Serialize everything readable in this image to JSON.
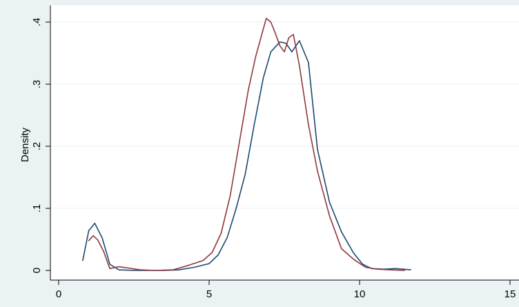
{
  "colors": {
    "outer_background": "#eaf2f3",
    "plot_background": "#ffffff",
    "gridline": "#eaf2f3",
    "axis": "#000000",
    "series_1": "#1a476f",
    "series_2": "#90353b"
  },
  "chart_data": {
    "type": "line",
    "title": "",
    "xlabel": "",
    "ylabel": "Density",
    "xlim": [
      0,
      15
    ],
    "ylim": [
      0,
      0.42
    ],
    "x_ticks": [
      0,
      5,
      10,
      15
    ],
    "x_tick_labels": [
      "0",
      "5",
      "10",
      "15"
    ],
    "y_ticks": [
      0,
      0.1,
      0.2,
      0.3,
      0.4
    ],
    "y_tick_labels": [
      "0",
      ".1",
      ".2",
      ".3",
      ".4"
    ],
    "grid": "horizontal",
    "legend": "none",
    "series": [
      {
        "color": "#1a476f",
        "x": [
          0.8,
          1.0,
          1.2,
          1.45,
          1.7,
          2.0,
          2.5,
          3.0,
          3.5,
          4.0,
          4.5,
          5.0,
          5.3,
          5.6,
          5.9,
          6.2,
          6.5,
          6.8,
          7.05,
          7.35,
          7.55,
          7.75,
          8.0,
          8.3,
          8.6,
          9.0,
          9.4,
          9.8,
          10.1,
          10.4,
          10.8,
          11.2,
          11.7
        ],
        "y": [
          0.016,
          0.064,
          0.076,
          0.052,
          0.01,
          0.001,
          0.0,
          0.0,
          0.0,
          0.001,
          0.005,
          0.011,
          0.025,
          0.053,
          0.1,
          0.155,
          0.235,
          0.31,
          0.352,
          0.368,
          0.366,
          0.352,
          0.37,
          0.335,
          0.195,
          0.11,
          0.062,
          0.028,
          0.01,
          0.003,
          0.002,
          0.003,
          0.001
        ]
      },
      {
        "color": "#90353b",
        "x": [
          1.0,
          1.15,
          1.3,
          1.5,
          1.7,
          2.0,
          2.3,
          2.7,
          3.2,
          3.8,
          4.3,
          4.8,
          5.1,
          5.4,
          5.7,
          6.0,
          6.3,
          6.55,
          6.75,
          6.9,
          7.05,
          7.2,
          7.35,
          7.5,
          7.65,
          7.8,
          8.0,
          8.3,
          8.6,
          9.0,
          9.4,
          9.8,
          10.2,
          10.6,
          11.0,
          11.5
        ],
        "y": [
          0.048,
          0.056,
          0.049,
          0.03,
          0.003,
          0.006,
          0.004,
          0.001,
          0.0,
          0.001,
          0.008,
          0.016,
          0.029,
          0.06,
          0.12,
          0.205,
          0.29,
          0.345,
          0.38,
          0.406,
          0.4,
          0.382,
          0.362,
          0.352,
          0.375,
          0.38,
          0.33,
          0.235,
          0.16,
          0.088,
          0.035,
          0.018,
          0.005,
          0.002,
          0.001,
          0.0
        ]
      }
    ]
  }
}
